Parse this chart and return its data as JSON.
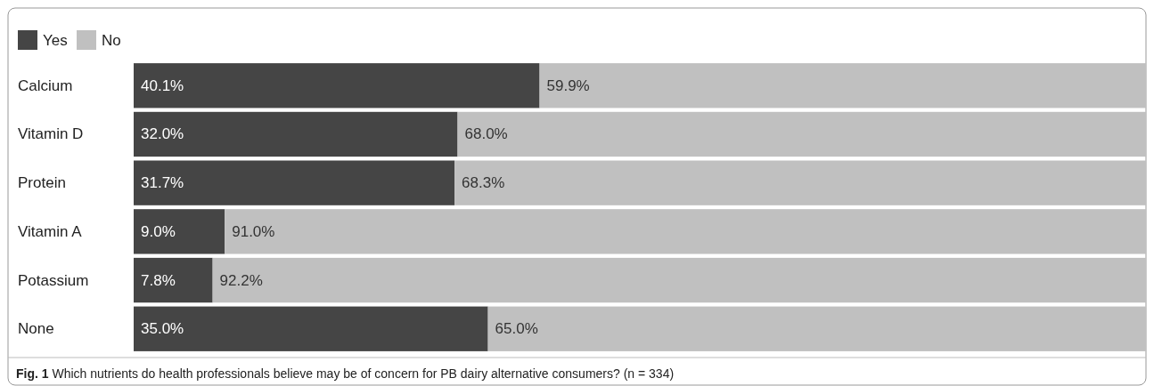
{
  "chart_data": {
    "type": "bar",
    "orientation": "horizontal",
    "stacked": true,
    "categories": [
      "Calcium",
      "Vitamin D",
      "Protein",
      "Vitamin A",
      "Potassium",
      "None"
    ],
    "xlim": [
      0,
      100
    ],
    "tick_labels": "y",
    "legend": "top left",
    "series": [
      {
        "name": "Yes",
        "color": "#454545",
        "values": [
          40.1,
          32.0,
          31.7,
          9.0,
          7.8,
          35.0
        ],
        "value_labels": [
          "40.1%",
          "32.0%",
          "31.7%",
          "9.0%",
          "7.8%",
          "35.0%"
        ]
      },
      {
        "name": "No",
        "color": "#c0c0c0",
        "values": [
          59.9,
          68.0,
          68.3,
          91.0,
          92.2,
          65.0
        ],
        "value_labels": [
          "59.9%",
          "68.0%",
          "68.3%",
          "91.0%",
          "92.2%",
          "65.0%"
        ]
      }
    ],
    "annotations": [
      "Fig. 1 Which nutrients do health professionals believe may be of concern for PB dairy alternative consumers? (n = 334)"
    ]
  }
}
